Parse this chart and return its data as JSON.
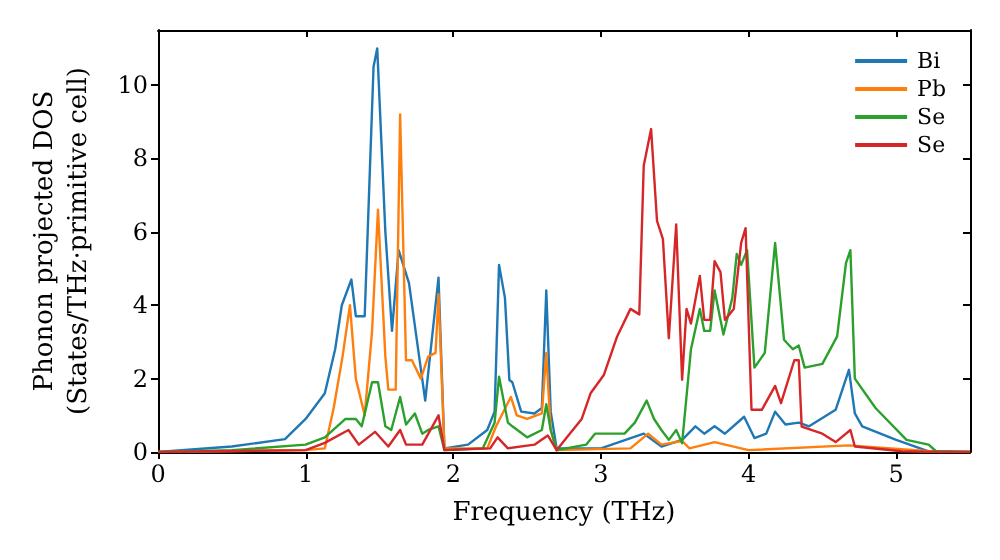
{
  "chart_data": {
    "type": "line",
    "xlabel": "Frequency (THz)",
    "ylabel": "Phonon projected DOS\n(States/THz·primitive cell)",
    "xlim": [
      0,
      5.5
    ],
    "xticks": [
      0,
      1,
      2,
      3,
      4,
      5
    ],
    "ylim": [
      0,
      11.5
    ],
    "yticks": [
      0,
      2,
      4,
      6,
      8,
      10
    ],
    "grid": false,
    "legend": "top right",
    "marker": "none",
    "line_style": "solid",
    "series": [
      {
        "name": "Bi",
        "color": "#1f77b4",
        "x": [
          0,
          0.5,
          0.86,
          1.0,
          1.13,
          1.2,
          1.245,
          1.31,
          1.34,
          1.4,
          1.46,
          1.485,
          1.54,
          1.585,
          1.63,
          1.7,
          1.81,
          1.9,
          1.94,
          2.1,
          2.23,
          2.28,
          2.31,
          2.35,
          2.38,
          2.4,
          2.46,
          2.55,
          2.6,
          2.63,
          2.66,
          2.7,
          3.0,
          3.29,
          3.41,
          3.55,
          3.64,
          3.7,
          3.77,
          3.84,
          3.97,
          4.04,
          4.12,
          4.18,
          4.25,
          4.34,
          4.41,
          4.59,
          4.68,
          4.72,
          4.77,
          5.0,
          5.22,
          5.5
        ],
        "values": [
          0,
          0.15,
          0.35,
          0.9,
          1.6,
          2.8,
          4.0,
          4.7,
          3.7,
          3.7,
          10.5,
          11.0,
          6.0,
          3.3,
          5.5,
          4.6,
          1.4,
          4.75,
          0.1,
          0.2,
          0.6,
          1.1,
          5.1,
          4.2,
          1.96,
          1.9,
          1.1,
          1.05,
          1.2,
          4.4,
          1.1,
          0.1,
          0.1,
          0.5,
          0.15,
          0.33,
          0.7,
          0.5,
          0.7,
          0.5,
          0.96,
          0.38,
          0.5,
          1.1,
          0.75,
          0.8,
          0.7,
          1.15,
          2.24,
          1.05,
          0.7,
          0.33,
          0.02,
          0
        ]
      },
      {
        "name": "Pb",
        "color": "#ff7f0e",
        "x": [
          0,
          1.0,
          1.13,
          1.19,
          1.25,
          1.3,
          1.34,
          1.4,
          1.45,
          1.49,
          1.54,
          1.56,
          1.61,
          1.64,
          1.68,
          1.72,
          1.78,
          1.83,
          1.88,
          1.9,
          1.94,
          2.23,
          2.29,
          2.39,
          2.43,
          2.5,
          2.6,
          2.63,
          2.66,
          2.7,
          3.2,
          3.32,
          3.41,
          3.55,
          3.6,
          3.77,
          4.0,
          4.68,
          5.3,
          5.5
        ],
        "values": [
          0,
          0.05,
          0.1,
          1.2,
          2.6,
          4.0,
          2.0,
          1.0,
          3.3,
          6.6,
          2.6,
          1.7,
          1.7,
          9.2,
          2.5,
          2.5,
          2.0,
          2.6,
          2.7,
          4.3,
          0.1,
          0.1,
          0.7,
          1.5,
          1.0,
          0.9,
          1.05,
          2.7,
          0.6,
          0.05,
          0.1,
          0.5,
          0.2,
          0.3,
          0.1,
          0.27,
          0.05,
          0.18,
          0,
          0
        ]
      },
      {
        "name": "Se",
        "color": "#2ca02c",
        "x": [
          0,
          0.5,
          1.0,
          1.13,
          1.27,
          1.34,
          1.38,
          1.45,
          1.49,
          1.54,
          1.58,
          1.64,
          1.68,
          1.74,
          1.79,
          1.83,
          1.9,
          1.94,
          2.2,
          2.28,
          2.31,
          2.37,
          2.4,
          2.5,
          2.6,
          2.63,
          2.66,
          2.7,
          2.9,
          2.96,
          3.16,
          3.23,
          3.31,
          3.36,
          3.41,
          3.46,
          3.51,
          3.55,
          3.61,
          3.67,
          3.7,
          3.74,
          3.77,
          3.83,
          3.89,
          3.92,
          3.95,
          3.99,
          4.04,
          4.11,
          4.18,
          4.24,
          4.3,
          4.34,
          4.38,
          4.5,
          4.6,
          4.66,
          4.69,
          4.72,
          4.86,
          5.07,
          5.22,
          5.27,
          5.5
        ],
        "values": [
          0,
          0.05,
          0.2,
          0.4,
          0.9,
          0.9,
          0.7,
          1.9,
          1.9,
          0.7,
          0.6,
          1.5,
          0.75,
          1.05,
          0.5,
          0.6,
          0.7,
          0.05,
          0.1,
          0.8,
          2.05,
          0.8,
          0.7,
          0.4,
          0.6,
          1.3,
          0.6,
          0.05,
          0.2,
          0.5,
          0.5,
          0.8,
          1.4,
          0.9,
          0.6,
          0.33,
          0.6,
          0.24,
          2.8,
          3.9,
          3.3,
          3.3,
          4.4,
          3.2,
          4.2,
          5.4,
          5.1,
          5.5,
          2.3,
          2.7,
          5.7,
          3.06,
          2.8,
          2.9,
          2.3,
          2.4,
          3.15,
          5.15,
          5.5,
          2.0,
          1.2,
          0.33,
          0.2,
          0.02,
          0
        ]
      },
      {
        "name": "Se",
        "color": "#d62728",
        "x": [
          0,
          1.0,
          1.13,
          1.29,
          1.36,
          1.47,
          1.56,
          1.64,
          1.68,
          1.79,
          1.9,
          1.94,
          2.25,
          2.3,
          2.37,
          2.55,
          2.64,
          2.7,
          2.77,
          2.87,
          2.93,
          3.02,
          3.11,
          3.2,
          3.26,
          3.29,
          3.34,
          3.38,
          3.42,
          3.46,
          3.51,
          3.55,
          3.58,
          3.61,
          3.67,
          3.7,
          3.74,
          3.77,
          3.81,
          3.84,
          3.9,
          3.95,
          3.98,
          4.02,
          4.09,
          4.18,
          4.22,
          4.31,
          4.34,
          4.36,
          4.5,
          4.59,
          4.69,
          4.72,
          5.04,
          5.3,
          5.5
        ],
        "values": [
          0,
          0.05,
          0.25,
          0.6,
          0.2,
          0.55,
          0.15,
          0.6,
          0.2,
          0.2,
          1.0,
          0.05,
          0.1,
          0.4,
          0.1,
          0.2,
          0.45,
          0.05,
          0.4,
          0.9,
          1.6,
          2.1,
          3.15,
          3.9,
          3.75,
          7.8,
          8.8,
          6.3,
          5.8,
          3.1,
          6.2,
          1.97,
          3.9,
          3.5,
          4.8,
          3.6,
          3.6,
          5.2,
          4.9,
          3.6,
          3.9,
          5.7,
          6.1,
          1.15,
          1.15,
          1.8,
          1.33,
          2.5,
          2.5,
          0.69,
          0.5,
          0.27,
          0.6,
          0.15,
          0.02,
          0,
          0
        ]
      }
    ]
  }
}
